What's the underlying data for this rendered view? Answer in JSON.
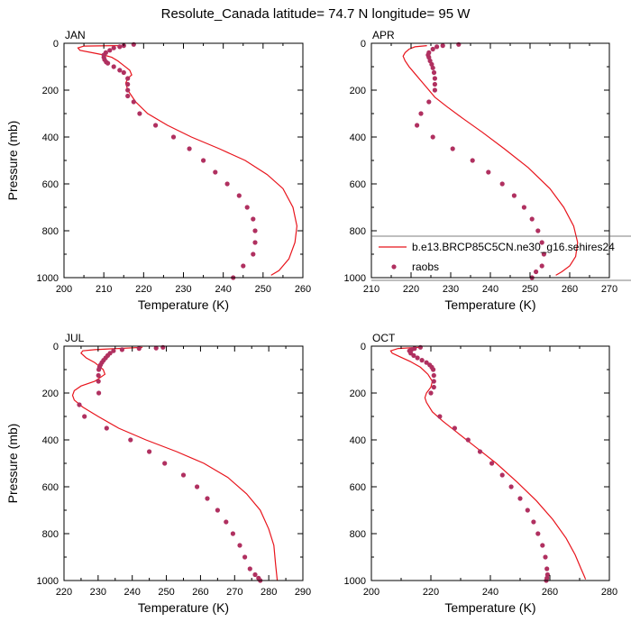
{
  "title": "Resolute_Canada  latitude= 74.7 N longitude= 95 W",
  "colors": {
    "model": "#e8141c",
    "obs": "#b03060",
    "frame": "#000000"
  },
  "legend": {
    "model_label": "b.e13.BRCP85C5CN.ne30_g16.sehires24",
    "obs_label": "raobs"
  },
  "chart_data": [
    {
      "type": "line",
      "panel": "JAN",
      "title": "JAN",
      "xlabel": "Temperature (K)",
      "ylabel": "Pressure (mb)",
      "xlim": [
        200,
        260
      ],
      "ylim": [
        1000,
        0
      ],
      "xticks": [
        200,
        210,
        220,
        230,
        240,
        250,
        260
      ],
      "yticks": [
        0,
        200,
        400,
        600,
        800,
        1000
      ],
      "series": [
        {
          "name": "model",
          "kind": "line",
          "x": [
            214,
            205,
            203.5,
            204,
            207,
            210,
            212,
            213.5,
            215,
            216.5,
            217,
            216,
            215.5,
            216,
            218,
            221,
            226,
            232,
            239,
            245.5,
            251,
            255,
            257.5,
            258.5,
            258,
            256.5,
            254,
            252
          ],
          "y": [
            10,
            12,
            20,
            30,
            40,
            50,
            60,
            75,
            95,
            115,
            135,
            150,
            170,
            200,
            250,
            300,
            350,
            400,
            450,
            500,
            560,
            620,
            700,
            780,
            850,
            920,
            970,
            990
          ]
        },
        {
          "name": "raobs",
          "kind": "points",
          "x": [
            217.5,
            215,
            214,
            212.5,
            211.5,
            210.5,
            210,
            210,
            210.2,
            210.6,
            211,
            212.5,
            214,
            215,
            216,
            216,
            216,
            216,
            217.5,
            219,
            223,
            227.5,
            231.5,
            235,
            238,
            241,
            244,
            246,
            247.5,
            248,
            248,
            247.5,
            245,
            242.5
          ],
          "y": [
            5,
            10,
            15,
            20,
            30,
            40,
            50,
            60,
            70,
            80,
            85,
            100,
            115,
            125,
            150,
            175,
            200,
            225,
            250,
            300,
            350,
            400,
            450,
            500,
            550,
            600,
            650,
            700,
            750,
            800,
            850,
            900,
            950,
            1000
          ]
        }
      ]
    },
    {
      "type": "line",
      "panel": "APR",
      "title": "APR",
      "xlabel": "Temperature (K)",
      "ylabel": "",
      "xlim": [
        210,
        270
      ],
      "ylim": [
        1000,
        0
      ],
      "xticks": [
        210,
        220,
        230,
        240,
        250,
        260,
        270
      ],
      "yticks": [
        0,
        200,
        400,
        600,
        800,
        1000
      ],
      "series": [
        {
          "name": "model",
          "kind": "line",
          "x": [
            224,
            221,
            219.5,
            218.5,
            218,
            218.5,
            219.5,
            221,
            222.5,
            224,
            226,
            229,
            233,
            238,
            243.5,
            249.5,
            255,
            258.5,
            261,
            262,
            261.5,
            260,
            258,
            256.5
          ],
          "y": [
            10,
            15,
            25,
            40,
            55,
            75,
            100,
            130,
            160,
            190,
            230,
            270,
            320,
            380,
            450,
            530,
            620,
            700,
            780,
            850,
            910,
            950,
            975,
            990
          ]
        },
        {
          "name": "raobs",
          "kind": "points",
          "x": [
            232,
            228,
            226.5,
            225.5,
            224.5,
            224.3,
            224.5,
            224.8,
            225.2,
            225.5,
            225.8,
            226,
            226,
            226,
            224.5,
            222.5,
            221.5,
            225.5,
            230.5,
            235.5,
            239.5,
            243,
            246,
            248.5,
            250.5,
            252,
            253,
            253.5,
            253,
            251.5,
            250.5
          ],
          "y": [
            5,
            10,
            15,
            25,
            40,
            50,
            60,
            75,
            90,
            105,
            125,
            150,
            175,
            200,
            250,
            300,
            350,
            400,
            450,
            500,
            550,
            600,
            650,
            700,
            750,
            800,
            850,
            900,
            950,
            975,
            1000
          ]
        }
      ]
    },
    {
      "type": "line",
      "panel": "JUL",
      "title": "JUL",
      "xlabel": "Temperature (K)",
      "ylabel": "Pressure (mb)",
      "xlim": [
        220,
        290
      ],
      "ylim": [
        1000,
        0
      ],
      "xticks": [
        220,
        230,
        240,
        250,
        260,
        270,
        280,
        290
      ],
      "yticks": [
        0,
        200,
        400,
        600,
        800,
        1000
      ],
      "series": [
        {
          "name": "model",
          "kind": "line",
          "x": [
            243,
            236,
            229,
            225.5,
            225,
            226.5,
            229,
            231.5,
            232,
            229,
            225,
            223,
            222.5,
            223,
            225.5,
            230,
            236,
            244,
            253,
            261,
            268,
            273.5,
            277.5,
            280,
            281.5,
            282,
            282.5
          ],
          "y": [
            5,
            10,
            15,
            20,
            30,
            50,
            70,
            100,
            120,
            150,
            170,
            190,
            210,
            230,
            260,
            300,
            350,
            400,
            450,
            500,
            560,
            630,
            700,
            780,
            850,
            930,
            1000
          ]
        },
        {
          "name": "raobs",
          "kind": "points",
          "x": [
            249,
            247,
            242,
            237,
            234.5,
            233.5,
            232.8,
            232.2,
            231.6,
            231.1,
            230.7,
            230.4,
            230.2,
            230.1,
            230.1,
            230.2,
            224.5,
            226,
            232.5,
            239.5,
            245,
            249.5,
            255,
            259,
            262,
            265,
            267.5,
            269.5,
            271.5,
            273,
            274.5,
            276,
            277,
            277.5
          ],
          "y": [
            5,
            8,
            10,
            15,
            20,
            30,
            40,
            50,
            60,
            70,
            80,
            90,
            100,
            125,
            150,
            200,
            250,
            300,
            350,
            400,
            450,
            500,
            550,
            600,
            650,
            700,
            750,
            800,
            850,
            900,
            950,
            975,
            990,
            1000
          ]
        }
      ]
    },
    {
      "type": "line",
      "panel": "OCT",
      "title": "OCT",
      "xlabel": "Temperature (K)",
      "ylabel": "",
      "xlim": [
        200,
        280
      ],
      "ylim": [
        1000,
        0
      ],
      "xticks": [
        200,
        220,
        240,
        260,
        280
      ],
      "yticks": [
        0,
        200,
        400,
        600,
        800,
        1000
      ],
      "series": [
        {
          "name": "model",
          "kind": "line",
          "x": [
            216,
            209,
            206.5,
            207,
            209.5,
            213,
            216.5,
            219,
            220.5,
            220,
            218.5,
            218,
            218.5,
            220.5,
            224,
            229,
            235,
            242,
            249,
            255.5,
            261,
            265.5,
            268.5,
            270.5,
            271.5,
            272
          ],
          "y": [
            5,
            10,
            20,
            30,
            45,
            65,
            90,
            120,
            150,
            175,
            200,
            220,
            240,
            280,
            320,
            370,
            430,
            500,
            580,
            660,
            740,
            820,
            890,
            950,
            980,
            995
          ]
        },
        {
          "name": "raobs",
          "kind": "points",
          "x": [
            216.5,
            214.5,
            213.5,
            212.8,
            213.2,
            214.2,
            215.5,
            217,
            218.5,
            219.6,
            220.3,
            220.8,
            221,
            221,
            221,
            220,
            223,
            228,
            232.5,
            236.5,
            240.5,
            244,
            247,
            250,
            252.5,
            254.5,
            256,
            257.5,
            258.5,
            259,
            259.2,
            259,
            258.8
          ],
          "y": [
            5,
            10,
            15,
            20,
            30,
            40,
            50,
            60,
            70,
            80,
            90,
            100,
            125,
            150,
            175,
            200,
            300,
            350,
            400,
            450,
            500,
            550,
            600,
            650,
            700,
            750,
            800,
            850,
            900,
            950,
            975,
            990,
            1000
          ]
        }
      ]
    }
  ]
}
